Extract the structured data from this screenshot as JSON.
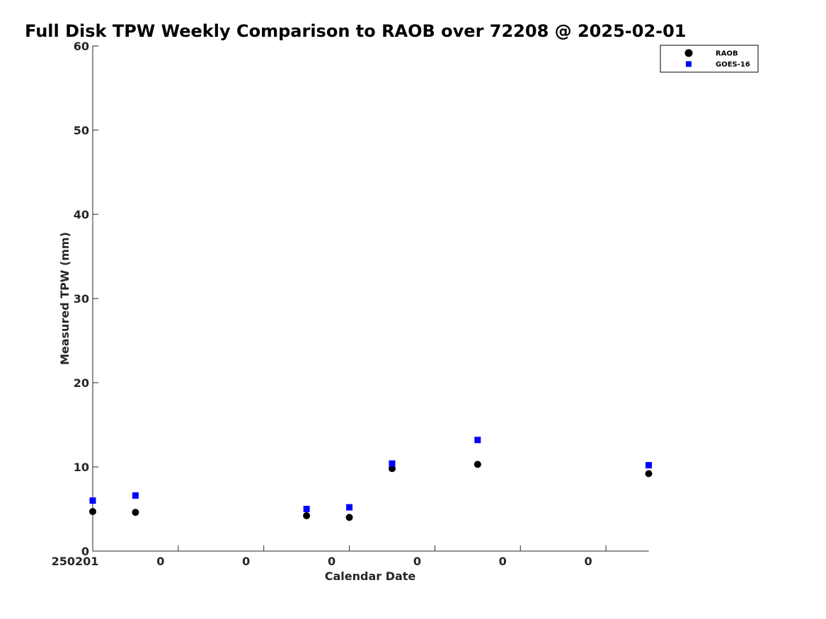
{
  "chart_data": {
    "type": "scatter",
    "title": "Full Disk TPW Weekly Comparison to RAOB over 72208 @ 2025-02-01",
    "xlabel": "Calendar Date",
    "ylabel": "Measured TPW (mm)",
    "ylim": [
      0,
      60
    ],
    "yticks": [
      0,
      10,
      20,
      30,
      40,
      50,
      60
    ],
    "y_tick_labels": [
      "0",
      "10",
      "20",
      "30",
      "40",
      "50",
      "60"
    ],
    "xlim": [
      0,
      6.5
    ],
    "xticks": [
      0,
      1,
      2,
      3,
      4,
      5,
      6
    ],
    "x_tick_labels": [
      "250201",
      "0",
      "0",
      "0",
      "0",
      "0",
      "0"
    ],
    "grid": false,
    "legend_position": "top-right",
    "x": [
      0,
      0.5,
      2.5,
      3,
      3.5,
      4.5,
      6.5
    ],
    "series": [
      {
        "name": "RAOB",
        "marker": "circle",
        "color": "#000000",
        "values": [
          4.7,
          4.6,
          4.2,
          4.0,
          9.8,
          10.3,
          9.2
        ]
      },
      {
        "name": "GOES-16",
        "marker": "square",
        "color": "#0000ff",
        "values": [
          6.0,
          6.6,
          5.0,
          5.2,
          10.4,
          13.2,
          10.2
        ]
      }
    ]
  }
}
